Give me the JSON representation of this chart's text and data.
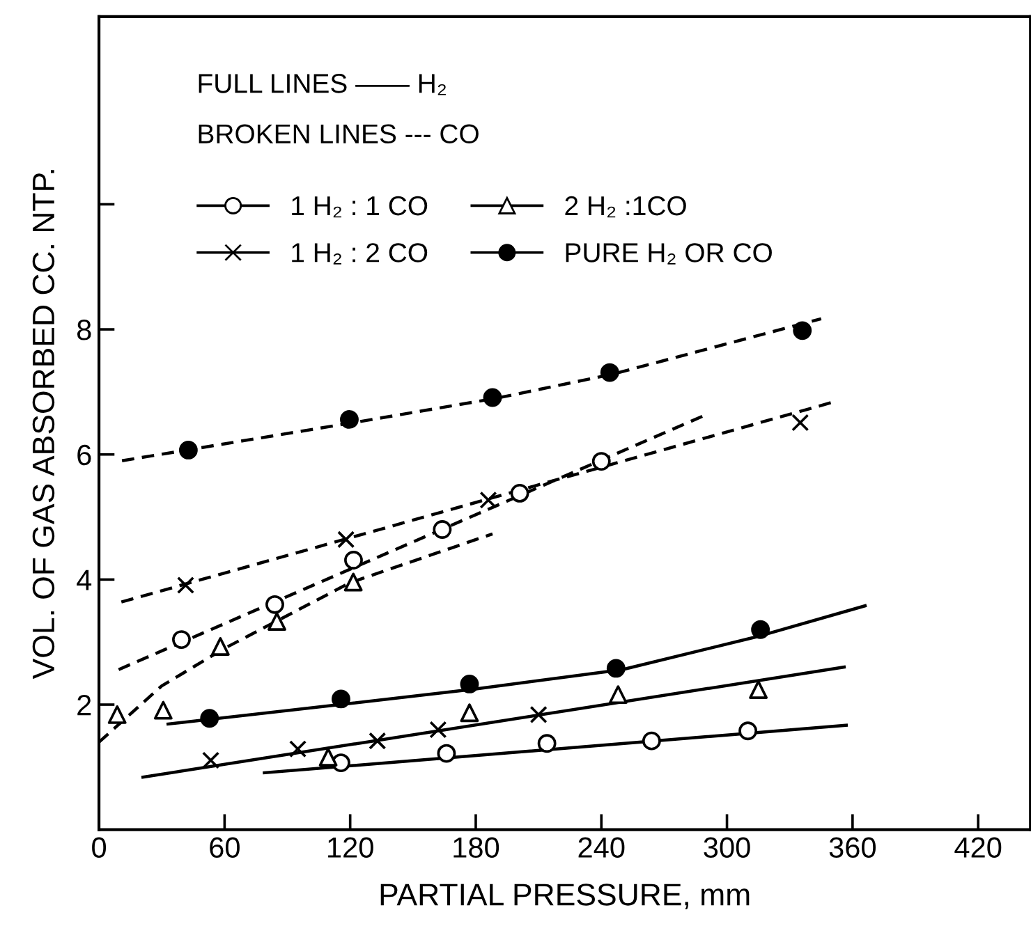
{
  "chart_data": {
    "type": "scatter",
    "xlabel": "PARTIAL PRESSURE, mm",
    "ylabel": "VOL. OF GAS ABSORBED CC. NTP.",
    "annotations": [
      "FULL LINES —— H₂",
      "BROKEN LINES --- CO"
    ],
    "xlim": [
      0,
      445
    ],
    "ylim": [
      0,
      13
    ],
    "xticks": [
      0,
      60,
      120,
      180,
      240,
      300,
      360,
      420
    ],
    "yticks": [
      2,
      4,
      6,
      8,
      {
        "value": 10,
        "label": null
      }
    ],
    "grid": false,
    "legend": "top left",
    "series": [
      {
        "name": "1 H₂ : 1 CO",
        "marker": "circle",
        "color": "#000000",
        "x": [
          39.4,
          84,
          121.6,
          164,
          201,
          240,
          115.6,
          166,
          214,
          264,
          310
        ],
        "values": [
          3.04,
          3.6,
          4.31,
          4.8,
          5.38,
          5.89,
          1.07,
          1.22,
          1.38,
          1.42,
          1.58
        ]
      },
      {
        "name": "1 H₂ : 2 CO",
        "marker": "cross",
        "color": "#000000",
        "x": [
          41.4,
          118,
          186,
          335,
          53.4,
          95,
          133,
          162,
          210
        ],
        "values": [
          3.91,
          4.64,
          5.27,
          6.51,
          1.11,
          1.29,
          1.42,
          1.6,
          1.84
        ]
      },
      {
        "name": "2 H₂ :1CO",
        "marker": "triangle",
        "color": "#000000",
        "x": [
          8.7,
          30.7,
          58,
          85,
          121.5,
          109.5,
          177,
          248,
          315
        ],
        "values": [
          1.84,
          1.91,
          2.93,
          3.33,
          3.96,
          1.16,
          1.87,
          2.16,
          2.24
        ]
      },
      {
        "name": "PURE H₂ OR CO",
        "marker": "circle",
        "color": "#000000",
        "x": [
          42.7,
          119.6,
          188,
          244,
          336,
          52.8,
          115.6,
          177,
          247,
          316
        ],
        "values": [
          6.07,
          6.56,
          6.91,
          7.31,
          7.98,
          1.78,
          2.09,
          2.33,
          2.58,
          3.2
        ]
      },
      {
        "type": "line",
        "line_style": "dashed",
        "color": "#000000",
        "x": [
          11,
          120,
          190,
          245,
          345
        ],
        "values": [
          5.9,
          6.5,
          6.9,
          7.28,
          8.17
        ]
      },
      {
        "type": "line",
        "line_style": "dashed",
        "color": "#000000",
        "x": [
          10.7,
          351
        ],
        "values": [
          3.64,
          6.84
        ]
      },
      {
        "type": "line",
        "line_style": "dashed",
        "color": "#000000",
        "x": [
          9.4,
          289
        ],
        "values": [
          2.56,
          6.62
        ]
      },
      {
        "type": "line",
        "line_style": "dashed",
        "color": "#000000",
        "x": [
          0,
          30,
          60,
          120,
          188
        ],
        "values": [
          1.4,
          2.3,
          2.9,
          3.95,
          4.73
        ]
      },
      {
        "type": "line",
        "line_style": "solid",
        "color": "#000000",
        "x": [
          33,
          115,
          180,
          250,
          316,
          366
        ],
        "values": [
          1.69,
          2.0,
          2.25,
          2.56,
          3.1,
          3.58
        ]
      },
      {
        "type": "line",
        "line_style": "solid",
        "color": "#000000",
        "x": [
          21,
          356
        ],
        "values": [
          0.84,
          2.6
        ]
      },
      {
        "type": "line",
        "line_style": "solid",
        "color": "#000000",
        "x": [
          79,
          357
        ],
        "values": [
          0.91,
          1.67
        ]
      }
    ]
  }
}
